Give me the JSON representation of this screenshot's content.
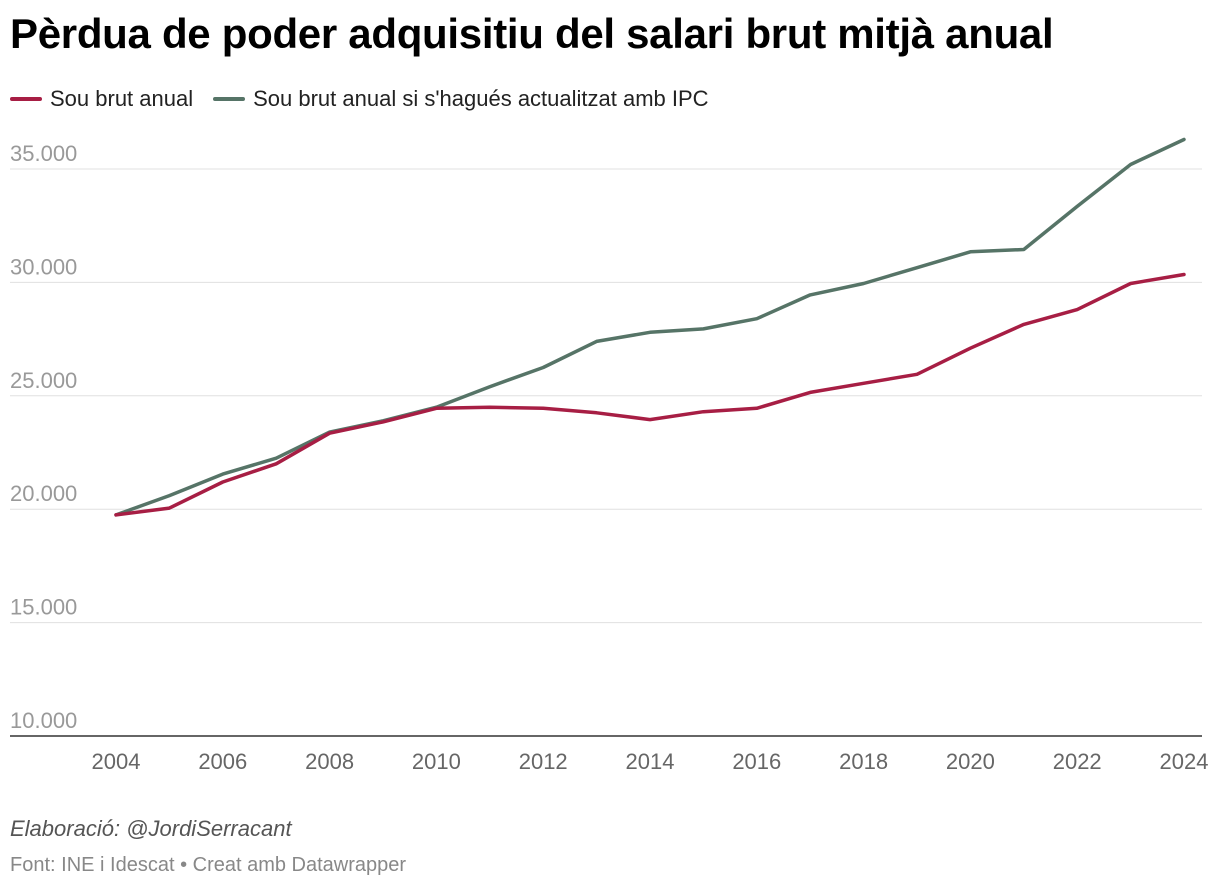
{
  "chart_data": {
    "type": "line",
    "title": "Pèrdua de poder adquisitiu del salari brut mitjà anual",
    "xlabel": "",
    "ylabel": "",
    "x": [
      2004,
      2005,
      2006,
      2007,
      2008,
      2009,
      2010,
      2011,
      2012,
      2013,
      2014,
      2015,
      2016,
      2017,
      2018,
      2019,
      2020,
      2021,
      2022,
      2023,
      2024
    ],
    "x_ticks": [
      "2004",
      "2006",
      "2008",
      "2010",
      "2012",
      "2014",
      "2016",
      "2018",
      "2020",
      "2022",
      "2024"
    ],
    "y_ticks": [
      10000,
      15000,
      20000,
      25000,
      30000,
      35000
    ],
    "y_tick_labels": [
      "10.000",
      "15.000",
      "20.000",
      "25.000",
      "30.000",
      "35.000"
    ],
    "xlim": [
      2004,
      2024
    ],
    "ylim": [
      10000,
      36500
    ],
    "grid": true,
    "legend_position": "top-left",
    "series": [
      {
        "name": "Sou brut anual",
        "color": "#a71e44",
        "values": [
          19750,
          20050,
          21200,
          22000,
          23350,
          23850,
          24450,
          24500,
          24450,
          24250,
          23950,
          24300,
          24450,
          25150,
          25550,
          25950,
          27100,
          28150,
          28800,
          29950,
          30350
        ]
      },
      {
        "name": "Sou brut anual si s'hagués actualitzat amb IPC",
        "color": "#567467",
        "values": [
          19750,
          20600,
          21550,
          22250,
          23400,
          23900,
          24500,
          25400,
          26250,
          27400,
          27800,
          27950,
          28400,
          29450,
          29950,
          30650,
          31350,
          31450,
          33350,
          35200,
          36300
        ]
      }
    ]
  },
  "footer": {
    "credit": "Elaboració: @JordiSerracant",
    "source": "Font: INE i Idescat • Creat amb Datawrapper"
  }
}
